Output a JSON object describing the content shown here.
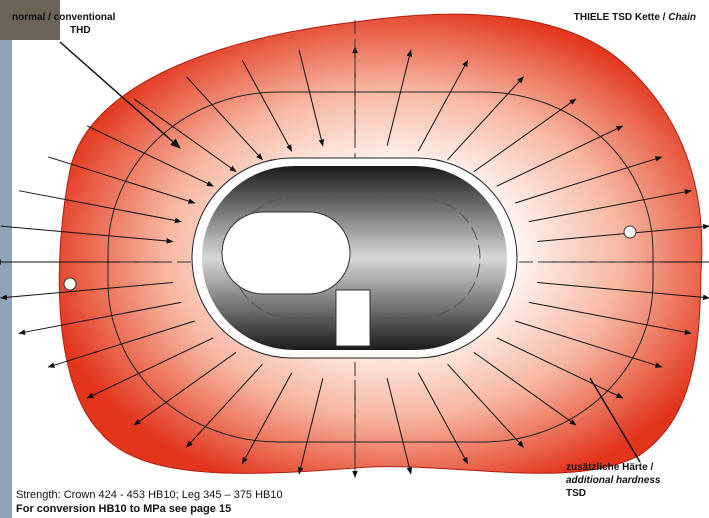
{
  "labels": {
    "left_top": [
      "normal / conventional",
      "THD"
    ],
    "right_top": {
      "text": "THIELE TSD Kette / ",
      "italic": "Chain"
    },
    "bottom_right": [
      "zusätzliche Härte /",
      "additional hardness",
      "TSD"
    ]
  },
  "footer": {
    "strength": "Strength: Crown 424 - 453 HB10; Leg 345 – 375 HB10",
    "conversion": "For conversion HB10 to MPa see page 15"
  }
}
